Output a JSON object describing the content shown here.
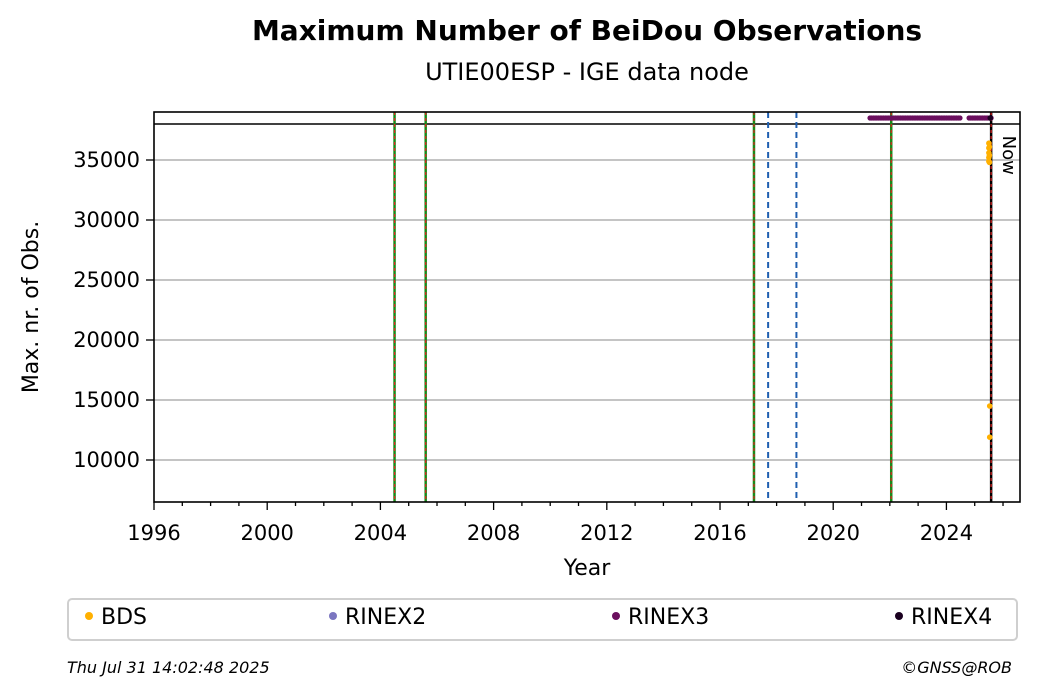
{
  "chart_data": {
    "type": "scatter",
    "title": "Maximum Number of BeiDou Observations",
    "subtitle": "UTIE00ESP - IGE data node",
    "xlabel": "Year",
    "ylabel": "Max. nr. of Obs.",
    "xlim": [
      1996,
      2026.6
    ],
    "ylim": [
      6500,
      39000
    ],
    "x_ticks": [
      1996,
      2000,
      2004,
      2008,
      2012,
      2016,
      2020,
      2024
    ],
    "y_ticks": [
      10000,
      15000,
      20000,
      25000,
      30000,
      35000
    ],
    "grid": "horizontal",
    "limit_line_y": 38000,
    "now_label": "Now",
    "now_x": 2025.58,
    "vlines_green_red": [
      2004.5,
      2005.6,
      2017.2,
      2022.05,
      2025.58
    ],
    "vlines_blue_dashed": [
      2017.7,
      2018.7
    ],
    "series": [
      {
        "name": "BDS",
        "color": "#ffb000",
        "points": [
          [
            2025.5,
            36400
          ],
          [
            2025.5,
            36000
          ],
          [
            2025.5,
            35600
          ],
          [
            2025.5,
            35200
          ],
          [
            2025.5,
            34900
          ],
          [
            2025.52,
            36100
          ],
          [
            2025.52,
            35400
          ],
          [
            2025.52,
            34800
          ],
          [
            2025.53,
            14500
          ],
          [
            2025.53,
            11900
          ]
        ]
      },
      {
        "name": "RINEX2",
        "color": "#7b76c0",
        "points": []
      },
      {
        "name": "RINEX3",
        "color": "#6b0f5e",
        "segments": [
          [
            2021.3,
            2024.5
          ],
          [
            2024.8,
            2025.6
          ]
        ],
        "y": 38500
      },
      {
        "name": "RINEX4",
        "color": "#1a0020",
        "points": [
          [
            2025.55,
            38500
          ]
        ]
      }
    ]
  },
  "legend": {
    "items": [
      {
        "label": "BDS",
        "color": "#ffb000"
      },
      {
        "label": "RINEX2",
        "color": "#7b76c0"
      },
      {
        "label": "RINEX3",
        "color": "#6b0f5e"
      },
      {
        "label": "RINEX4",
        "color": "#1a0020"
      }
    ]
  },
  "footer": {
    "timestamp": "Thu Jul 31 14:02:48 2025",
    "credit": "©GNSS@ROB"
  }
}
